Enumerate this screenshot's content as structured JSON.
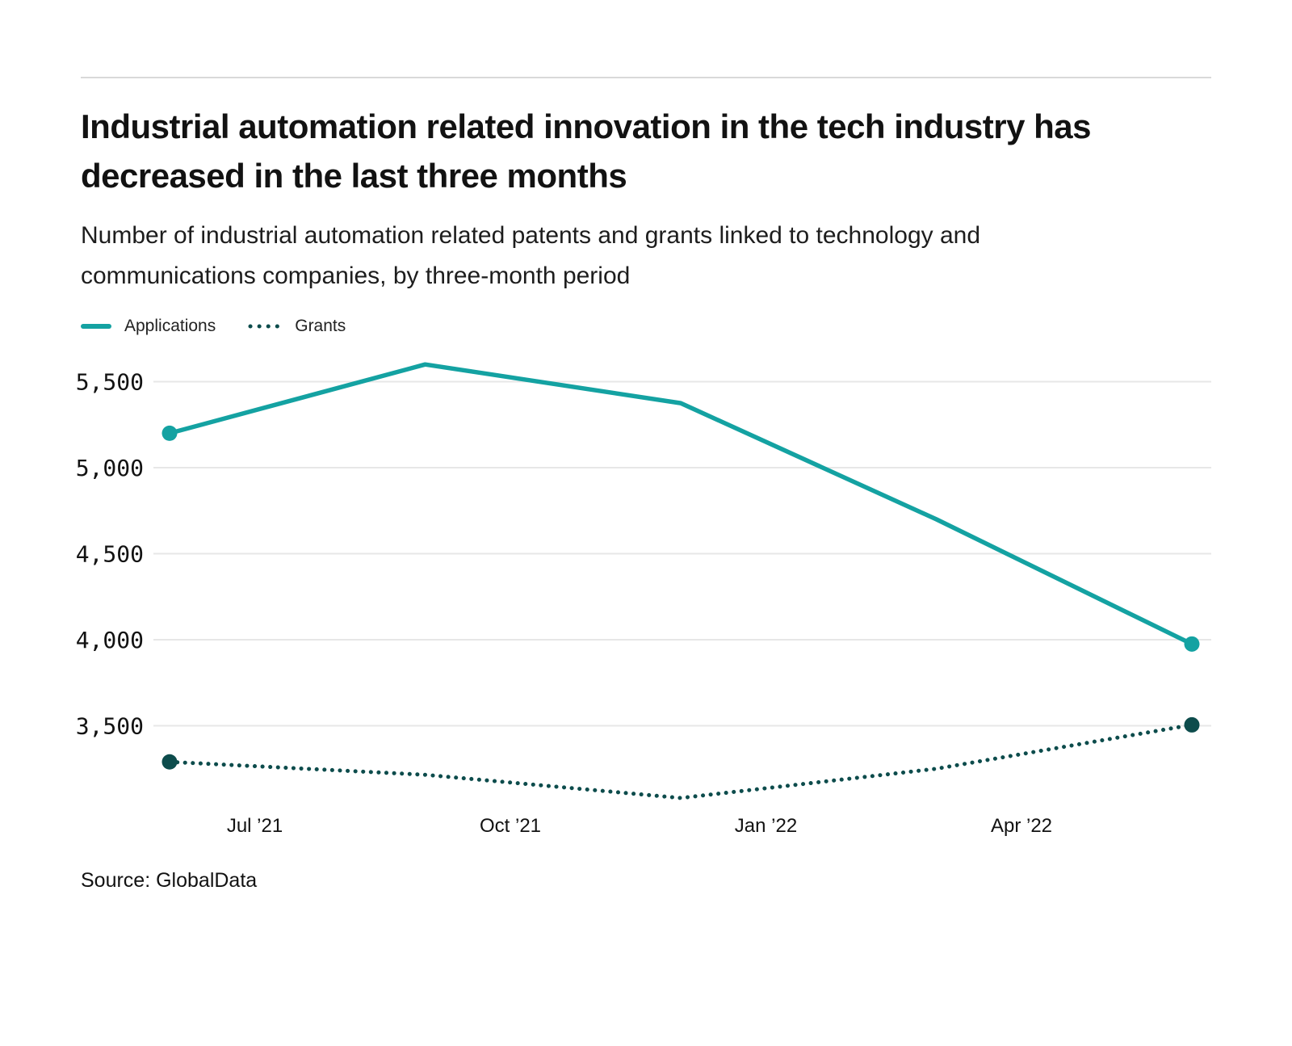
{
  "page": {
    "title": "Industrial automation related innovation in the tech industry has decreased in the last three months",
    "subtitle": "Number of industrial automation related patents and grants linked to technology and communications companies, by three-month period",
    "source": "Source: GlobalData"
  },
  "colors": {
    "applications": "#14a2a2",
    "grants": "#0d4c4c",
    "gridline": "#e7e7e7",
    "divider": "#d9d9d9",
    "text": "#121212"
  },
  "legend": [
    {
      "label": "Applications",
      "style": "solid",
      "color": "#14a2a2"
    },
    {
      "label": "Grants",
      "style": "dotted",
      "color": "#0d4c4c"
    }
  ],
  "chart_data": {
    "type": "line",
    "title": "Number of industrial automation related patents and grants linked to technology and communications companies, by three-month period",
    "xlabel": "",
    "ylabel": "",
    "y_ticks": [
      5500,
      5000,
      4500,
      4000,
      3500
    ],
    "ylim": [
      3500,
      5500
    ],
    "grid": "horizontal",
    "legend_position": "top-left",
    "x_tick_labels": [
      "Jul ’21",
      "Oct ’21",
      "Jan ’22",
      "Apr ’22"
    ],
    "x_tick_months": [
      1,
      4,
      7,
      10
    ],
    "x_points_months": [
      0,
      3,
      6,
      9,
      12
    ],
    "series": [
      {
        "name": "Applications",
        "line_style": "solid",
        "color": "#14a2a2",
        "values": [
          5200,
          5600,
          5375,
          4700,
          3975
        ]
      },
      {
        "name": "Grants",
        "line_style": "dotted",
        "color": "#0d4c4c",
        "values": [
          3290,
          3215,
          3080,
          3250,
          3505
        ]
      }
    ]
  }
}
